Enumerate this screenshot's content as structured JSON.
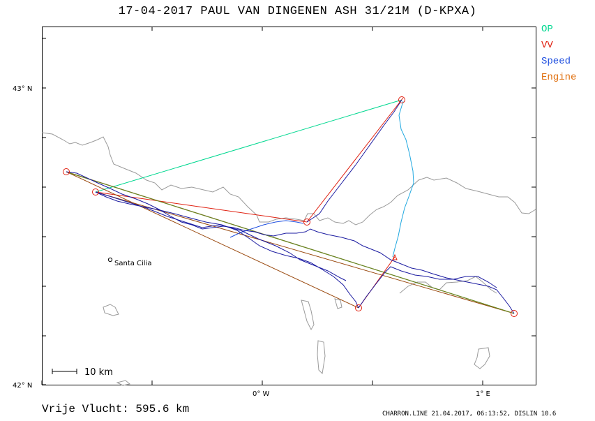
{
  "title": "17-04-2017   PAUL VAN DINGENEN   ASH 31/21M (D-KPXA)",
  "legend": [
    {
      "label": "OP",
      "color": "#00d890"
    },
    {
      "label": "VV",
      "color": "#e02010"
    },
    {
      "label": "Speed",
      "color": "#2050e0"
    },
    {
      "label": "Engine",
      "color": "#e07010"
    }
  ],
  "axes": {
    "lat_labels": [
      "43° N",
      "42° N"
    ],
    "lon_labels": [
      "0° W",
      "1° E"
    ]
  },
  "scale_label": "10 km",
  "place": {
    "name": "Santa Cilia"
  },
  "distance_text": "Vrije Vlucht:  595.6 km",
  "footer_text": "CHARRON.LINE 21.04.2017, 06:13:52, DISLIN 10.6"
}
